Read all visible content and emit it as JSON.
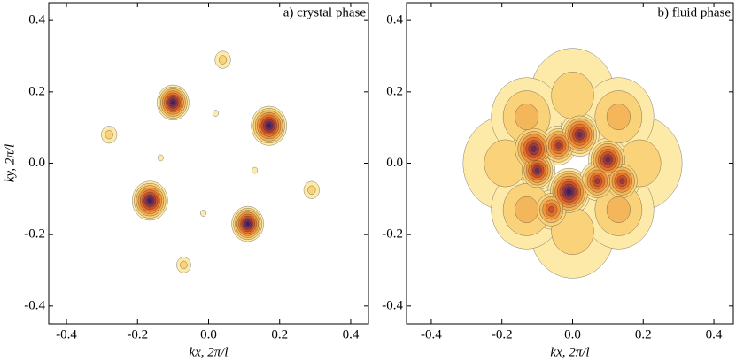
{
  "chart_data": [
    {
      "type": "contour",
      "title": "a) crystal phase",
      "xlabel": "kx, 2π/l",
      "ylabel": "ky, 2π/l",
      "xlim": [
        -0.45,
        0.45
      ],
      "ylim": [
        -0.45,
        0.45
      ],
      "xticks": [
        -0.4,
        -0.2,
        {
          "value": 0,
          "label": "0.0"
        },
        0.2,
        0.4
      ],
      "yticks": [
        -0.4,
        -0.2,
        {
          "value": 0,
          "label": "0.0"
        },
        0.2,
        0.4
      ],
      "colors": [
        "#fde9a8",
        "#f9d27a",
        "#f4b65a",
        "#f0953c",
        "#e57228",
        "#c8502a",
        "#9a3a3a",
        "#6a2b5a",
        "#3a1f6a"
      ],
      "peaks": [
        {
          "kx": -0.1,
          "ky": 0.17,
          "level": 9,
          "size": 0.045
        },
        {
          "kx": 0.17,
          "ky": 0.105,
          "level": 9,
          "size": 0.05
        },
        {
          "kx": -0.165,
          "ky": -0.105,
          "level": 9,
          "size": 0.05
        },
        {
          "kx": 0.11,
          "ky": -0.17,
          "level": 9,
          "size": 0.045
        },
        {
          "kx": 0.04,
          "ky": 0.29,
          "level": 2,
          "size": 0.022
        },
        {
          "kx": -0.28,
          "ky": 0.08,
          "level": 2,
          "size": 0.022
        },
        {
          "kx": 0.29,
          "ky": -0.075,
          "level": 2,
          "size": 0.022
        },
        {
          "kx": -0.07,
          "ky": -0.285,
          "level": 2,
          "size": 0.02
        },
        {
          "kx": 0.02,
          "ky": 0.14,
          "level": 1,
          "size": 0.008
        },
        {
          "kx": -0.135,
          "ky": 0.015,
          "level": 1,
          "size": 0.008
        },
        {
          "kx": -0.015,
          "ky": -0.14,
          "level": 1,
          "size": 0.008
        },
        {
          "kx": 0.13,
          "ky": -0.02,
          "level": 1,
          "size": 0.008
        }
      ]
    },
    {
      "type": "contour",
      "title": "b) fluid phase",
      "xlabel": "kx, 2π/l",
      "xlim": [
        -0.47,
        0.455
      ],
      "ylim": [
        -0.45,
        0.45
      ],
      "xticks": [
        -0.4,
        -0.2,
        {
          "value": 0,
          "label": "0.0"
        },
        0.2,
        0.4
      ],
      "yticks": [
        -0.4,
        -0.2,
        {
          "value": 0,
          "label": "0.0"
        },
        0.2,
        0.4
      ],
      "colors": [
        "#fde9a8",
        "#f9d27a",
        "#f4b65a",
        "#f0953c",
        "#e57228",
        "#c8502a",
        "#9a3a3a",
        "#6a2b5a",
        "#3a1f6a"
      ],
      "peaks": [
        {
          "kx": 0.0,
          "ky": 0.19,
          "level": 2,
          "size": 0.12
        },
        {
          "kx": 0.0,
          "ky": -0.19,
          "level": 2,
          "size": 0.12
        },
        {
          "kx": 0.19,
          "ky": 0.0,
          "level": 2,
          "size": 0.12
        },
        {
          "kx": -0.19,
          "ky": 0.0,
          "level": 2,
          "size": 0.12
        },
        {
          "kx": 0.13,
          "ky": 0.13,
          "level": 3,
          "size": 0.1
        },
        {
          "kx": -0.13,
          "ky": 0.13,
          "level": 3,
          "size": 0.1
        },
        {
          "kx": 0.13,
          "ky": -0.13,
          "level": 3,
          "size": 0.1
        },
        {
          "kx": -0.13,
          "ky": -0.13,
          "level": 3,
          "size": 0.1
        },
        {
          "kx": -0.11,
          "ky": 0.04,
          "level": 8,
          "size": 0.06
        },
        {
          "kx": -0.04,
          "ky": 0.05,
          "level": 7,
          "size": 0.05
        },
        {
          "kx": 0.02,
          "ky": 0.08,
          "level": 8,
          "size": 0.055
        },
        {
          "kx": -0.1,
          "ky": -0.02,
          "level": 8,
          "size": 0.05
        },
        {
          "kx": 0.1,
          "ky": 0.01,
          "level": 8,
          "size": 0.055
        },
        {
          "kx": 0.14,
          "ky": -0.05,
          "level": 7,
          "size": 0.05
        },
        {
          "kx": -0.01,
          "ky": -0.08,
          "level": 9,
          "size": 0.06
        },
        {
          "kx": 0.07,
          "ky": -0.05,
          "level": 7,
          "size": 0.05
        },
        {
          "kx": -0.06,
          "ky": -0.13,
          "level": 6,
          "size": 0.05
        }
      ]
    }
  ]
}
